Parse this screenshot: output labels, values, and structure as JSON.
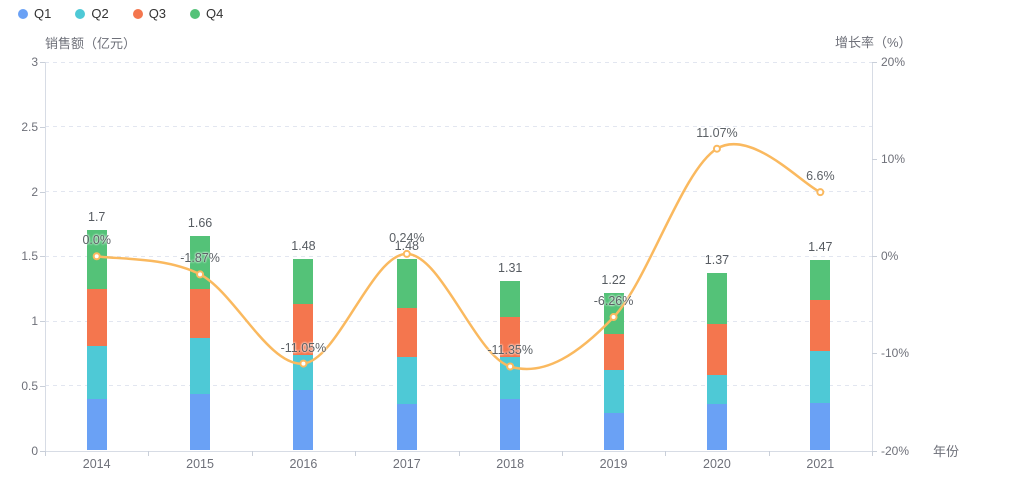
{
  "chart_data": {
    "type": "stacked-bar+line",
    "categories": [
      "2014",
      "2015",
      "2016",
      "2017",
      "2018",
      "2019",
      "2020",
      "2021"
    ],
    "legend": [
      "Q1",
      "Q2",
      "Q3",
      "Q4"
    ],
    "bar_series": [
      {
        "name": "Q1",
        "color": "#6AA1F5",
        "values": [
          0.4,
          0.44,
          0.47,
          0.36,
          0.4,
          0.29,
          0.36,
          0.37
        ]
      },
      {
        "name": "Q2",
        "color": "#4EC9D6",
        "values": [
          0.41,
          0.43,
          0.27,
          0.36,
          0.32,
          0.33,
          0.22,
          0.4
        ]
      },
      {
        "name": "Q3",
        "color": "#F4764E",
        "values": [
          0.44,
          0.38,
          0.39,
          0.38,
          0.31,
          0.28,
          0.4,
          0.39
        ]
      },
      {
        "name": "Q4",
        "color": "#54C278",
        "values": [
          0.45,
          0.41,
          0.35,
          0.38,
          0.28,
          0.32,
          0.39,
          0.31
        ]
      }
    ],
    "bar_total_labels": [
      "1.7",
      "1.66",
      "1.48",
      "1.48",
      "1.31",
      "1.22",
      "1.37",
      "1.47"
    ],
    "line_series": {
      "name": "growth-rate",
      "color": "#FAB95F",
      "values": [
        0.0,
        -1.87,
        -11.05,
        0.24,
        -11.35,
        -6.26,
        11.07,
        6.6
      ],
      "labels": [
        "0.0%",
        "-1.87%",
        "-11.05%",
        "0.24%",
        "-11.35%",
        "-6.26%",
        "11.07%",
        "6.6%"
      ]
    },
    "left_axis": {
      "name": "销售额（亿元）",
      "min": 0,
      "max": 3,
      "tick_values": [
        0,
        0.5,
        1,
        1.5,
        2,
        2.5,
        3
      ],
      "tick_labels": [
        "0",
        "0.5",
        "1",
        "1.5",
        "2",
        "2.5",
        "3"
      ]
    },
    "right_axis": {
      "name": "增长率（%）",
      "min": -20,
      "max": 20,
      "tick_values": [
        -20,
        -10,
        0,
        10,
        20
      ],
      "tick_labels": [
        "-20%",
        "-10%",
        "0%",
        "10%",
        "20%"
      ]
    },
    "x_axis": {
      "name": "年份"
    },
    "grid": true,
    "legend_position": "top-left"
  }
}
